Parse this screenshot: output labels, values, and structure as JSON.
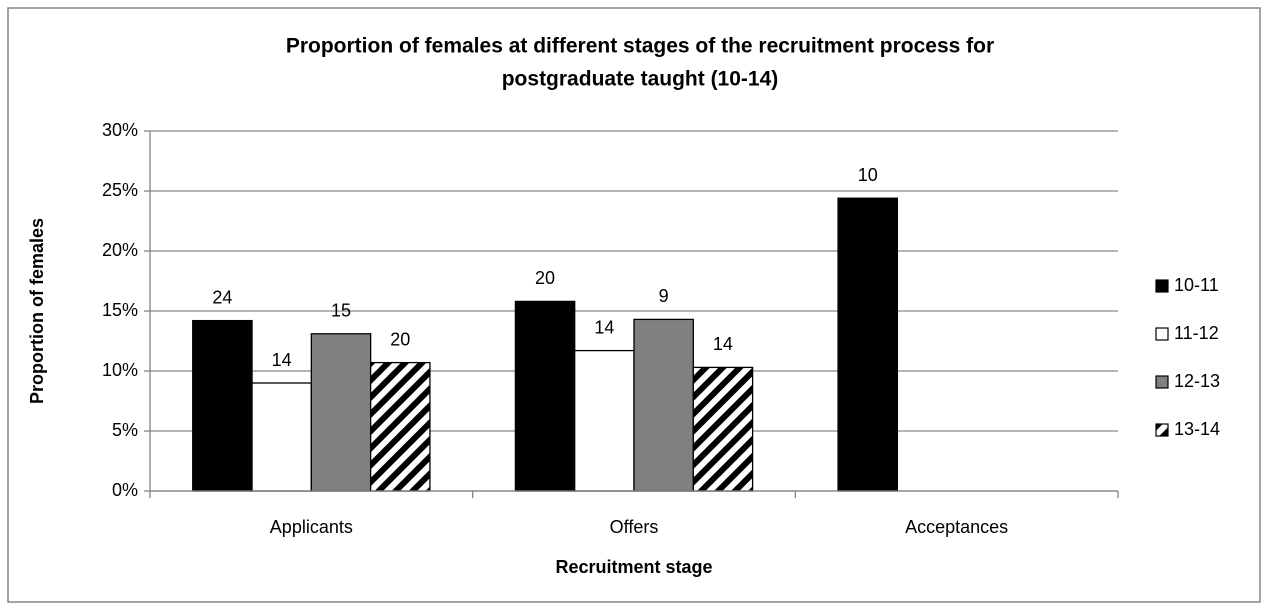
{
  "chart_data": {
    "type": "bar",
    "title": [
      "Proportion of females at different stages of the recruitment process for",
      "postgraduate taught (10-14)"
    ],
    "x_label": "Recruitment stage",
    "y_label": "Proportion of females",
    "categories": [
      "Applicants",
      "Offers",
      "Acceptances"
    ],
    "series": [
      {
        "name": "10-11",
        "color": "#000000",
        "values": [
          14.2,
          15.8,
          24.4
        ],
        "data_labels": [
          "24",
          "20",
          "10"
        ]
      },
      {
        "name": "11-12",
        "color": "#ffffff",
        "values": [
          9.0,
          11.7,
          null
        ],
        "data_labels": [
          "14",
          "14",
          null
        ]
      },
      {
        "name": "12-13",
        "color": "#808080",
        "values": [
          13.1,
          14.3,
          null
        ],
        "data_labels": [
          "15",
          "9",
          null
        ]
      },
      {
        "name": "13-14",
        "color": "hatch",
        "values": [
          10.7,
          10.3,
          null
        ],
        "data_labels": [
          "20",
          "14",
          null
        ]
      }
    ],
    "ylim": [
      0,
      30
    ],
    "yticks": [
      {
        "value": 0,
        "label": "0%"
      },
      {
        "value": 5,
        "label": "5%"
      },
      {
        "value": 10,
        "label": "10%"
      },
      {
        "value": 15,
        "label": "15%"
      },
      {
        "value": 20,
        "label": "20%"
      },
      {
        "value": 25,
        "label": "25%"
      },
      {
        "value": 30,
        "label": "30%"
      }
    ],
    "grid": true,
    "legend": "right"
  }
}
